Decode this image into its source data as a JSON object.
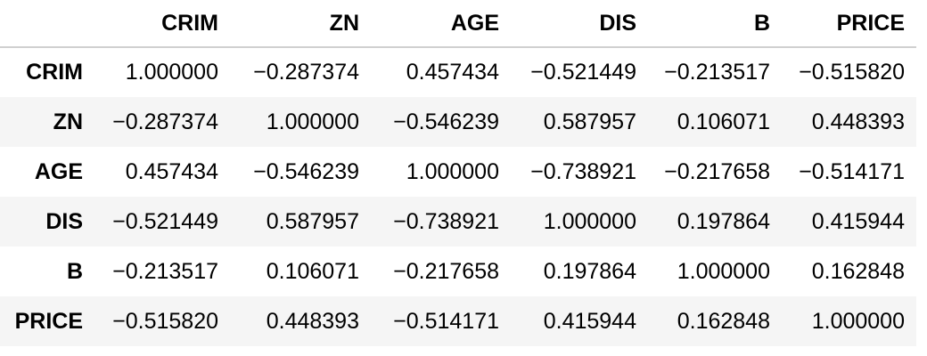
{
  "table": {
    "index_header": "",
    "columns": [
      "CRIM",
      "ZN",
      "AGE",
      "DIS",
      "B",
      "PRICE"
    ],
    "rows": [
      {
        "label": "CRIM",
        "cells": [
          "1.000000",
          "-0.287374",
          "0.457434",
          "-0.521449",
          "-0.213517",
          "-0.515820"
        ]
      },
      {
        "label": "ZN",
        "cells": [
          "-0.287374",
          "1.000000",
          "-0.546239",
          "0.587957",
          "0.106071",
          "0.448393"
        ]
      },
      {
        "label": "AGE",
        "cells": [
          "0.457434",
          "-0.546239",
          "1.000000",
          "-0.738921",
          "-0.217658",
          "-0.514171"
        ]
      },
      {
        "label": "DIS",
        "cells": [
          "-0.521449",
          "0.587957",
          "-0.738921",
          "1.000000",
          "0.197864",
          "0.415944"
        ]
      },
      {
        "label": "B",
        "cells": [
          "-0.213517",
          "0.106071",
          "-0.217658",
          "0.197864",
          "1.000000",
          "0.162848"
        ]
      },
      {
        "label": "PRICE",
        "cells": [
          "-0.515820",
          "0.448393",
          "-0.514171",
          "0.415944",
          "0.162848",
          "1.000000"
        ]
      }
    ],
    "stripe_color": "#f5f5f5",
    "header_rule_color": "#d0d0d0"
  }
}
